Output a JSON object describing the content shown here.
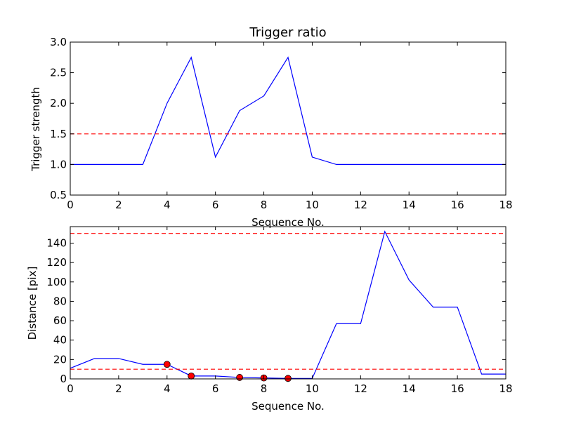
{
  "colors": {
    "line": "#0000ff",
    "threshold": "#ff0000",
    "marker_fill": "#ff0000",
    "marker_edge": "#000000"
  },
  "chart_data": [
    {
      "type": "line",
      "title": "Trigger ratio",
      "xlabel": "Sequence No.",
      "ylabel": "Trigger strength",
      "xlim": [
        0,
        18
      ],
      "ylim": [
        0.5,
        3.0
      ],
      "xticks": [
        0,
        2,
        4,
        6,
        8,
        10,
        12,
        14,
        16,
        18
      ],
      "yticks": [
        0.5,
        1.0,
        1.5,
        2.0,
        2.5,
        3.0
      ],
      "xtick_labels": [
        "0",
        "2",
        "4",
        "6",
        "8",
        "10",
        "12",
        "14",
        "16",
        "18"
      ],
      "ytick_labels": [
        "0.5",
        "1.0",
        "1.5",
        "2.0",
        "2.5",
        "3.0"
      ],
      "grid": false,
      "x": [
        0,
        1,
        2,
        3,
        4,
        5,
        6,
        7,
        8,
        9,
        10,
        11,
        12,
        13,
        14,
        15,
        16,
        17,
        18
      ],
      "series": [
        {
          "values": [
            1.0,
            1.0,
            1.0,
            1.0,
            2.0,
            2.75,
            1.12,
            1.88,
            2.12,
            2.75,
            1.12,
            1.0,
            1.0,
            1.0,
            1.0,
            1.0,
            1.0,
            1.0,
            1.0
          ],
          "style": "solid"
        }
      ],
      "hlines": [
        {
          "y": 1.5,
          "style": "dashed"
        }
      ],
      "markers": []
    },
    {
      "type": "line",
      "title": "",
      "xlabel": "Sequence No.",
      "ylabel": "Distance [pix]",
      "xlim": [
        0,
        18
      ],
      "ylim": [
        0,
        157
      ],
      "xticks": [
        0,
        2,
        4,
        6,
        8,
        10,
        12,
        14,
        16,
        18
      ],
      "yticks": [
        0,
        20,
        40,
        60,
        80,
        100,
        120,
        140
      ],
      "xtick_labels": [
        "0",
        "2",
        "4",
        "6",
        "8",
        "10",
        "12",
        "14",
        "16",
        "18"
      ],
      "ytick_labels": [
        "0",
        "20",
        "40",
        "60",
        "80",
        "100",
        "120",
        "140"
      ],
      "grid": false,
      "x": [
        0,
        1,
        2,
        3,
        4,
        5,
        6,
        7,
        8,
        9,
        10,
        11,
        12,
        13,
        14,
        15,
        16,
        17,
        18
      ],
      "series": [
        {
          "values": [
            11,
            21,
            21,
            15,
            15,
            3,
            3,
            1.5,
            1,
            0.5,
            0.5,
            57,
            57,
            152,
            102,
            74,
            74,
            5,
            5
          ],
          "style": "solid"
        }
      ],
      "hlines": [
        {
          "y": 150,
          "style": "dashed"
        },
        {
          "y": 10,
          "style": "dashed"
        }
      ],
      "markers": [
        {
          "x": 4,
          "y": 15
        },
        {
          "x": 5,
          "y": 3
        },
        {
          "x": 7,
          "y": 1.5
        },
        {
          "x": 8,
          "y": 1
        },
        {
          "x": 9,
          "y": 0.5
        }
      ]
    }
  ]
}
